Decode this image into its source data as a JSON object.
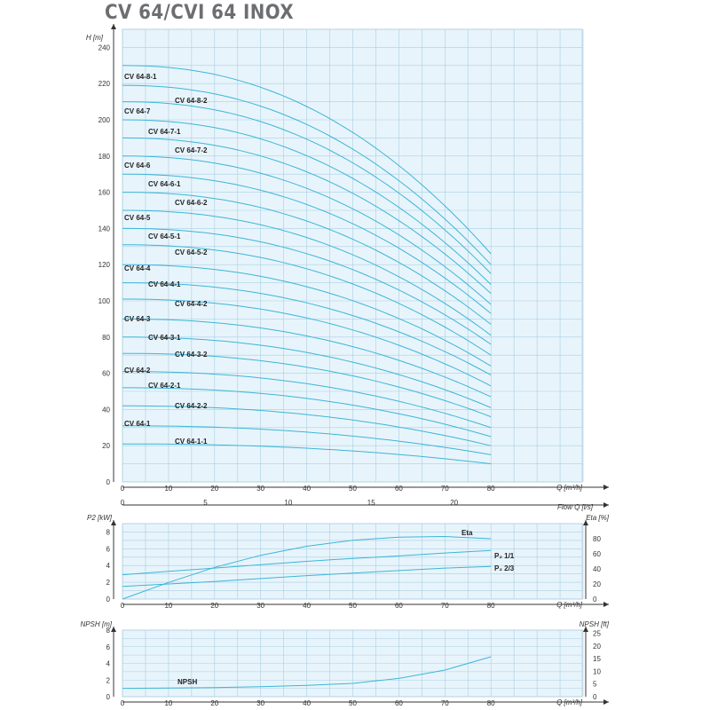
{
  "title": "CV 64/CVI 64 INOX",
  "colors": {
    "panel": "#e8f4fb",
    "grid": "#a9cfe3",
    "curve": "#3bb6d8",
    "axis": "#333333",
    "title": "#6d6e71"
  },
  "chart_data": [
    {
      "id": "head",
      "type": "line",
      "ylabel": "H [m]",
      "xlabel": "Q [m³/h]",
      "xlim": [
        0,
        100
      ],
      "ylim": [
        0,
        240
      ],
      "xticks": [
        0,
        10,
        20,
        30,
        40,
        50,
        60,
        70,
        80
      ],
      "yticks": [
        0,
        20,
        40,
        60,
        80,
        100,
        120,
        140,
        160,
        180,
        200,
        220,
        240
      ],
      "secondary_x": {
        "label": "Flow Q [l/s]",
        "ticks": [
          0,
          5,
          10,
          15,
          20
        ]
      },
      "grid": true,
      "series": [
        {
          "name": "CV 64-8-1",
          "shutoff": 230,
          "end": 126
        },
        {
          "name": "CV 64-8-2",
          "shutoff": 219,
          "end": 120
        },
        {
          "name": "CV 64-7",
          "shutoff": 210,
          "end": 115
        },
        {
          "name": "CV 64-7-1",
          "shutoff": 200,
          "end": 109
        },
        {
          "name": "CV 64-7-2",
          "shutoff": 190,
          "end": 104
        },
        {
          "name": "CV 64-6",
          "shutoff": 180,
          "end": 98
        },
        {
          "name": "CV 64-6-1",
          "shutoff": 170,
          "end": 93
        },
        {
          "name": "CV 64-6-2",
          "shutoff": 160,
          "end": 87
        },
        {
          "name": "CV 64-5",
          "shutoff": 150,
          "end": 81
        },
        {
          "name": "CV 64-5-1",
          "shutoff": 140,
          "end": 76
        },
        {
          "name": "CV 64-5-2",
          "shutoff": 131,
          "end": 70
        },
        {
          "name": "CV 64-4",
          "shutoff": 120,
          "end": 64
        },
        {
          "name": "CV 64-4-1",
          "shutoff": 110,
          "end": 59
        },
        {
          "name": "CV 64-4-2",
          "shutoff": 101,
          "end": 53
        },
        {
          "name": "CV 64-3",
          "shutoff": 90,
          "end": 47
        },
        {
          "name": "CV 64-3-1",
          "shutoff": 80,
          "end": 41
        },
        {
          "name": "CV 64-3-2",
          "shutoff": 71,
          "end": 36
        },
        {
          "name": "CV 64-2",
          "shutoff": 61,
          "end": 30
        },
        {
          "name": "CV 64-2-1",
          "shutoff": 52,
          "end": 25
        },
        {
          "name": "CV 64-2-2",
          "shutoff": 42,
          "end": 20
        },
        {
          "name": "CV 64-1",
          "shutoff": 31,
          "end": 15
        },
        {
          "name": "CV 64-1-1",
          "shutoff": 21,
          "end": 10
        }
      ]
    },
    {
      "id": "power",
      "type": "line",
      "ylabel": "P2 [kW]",
      "ylabel_right": "Eta [%]",
      "xlabel": "Q [m³/h]",
      "xlim": [
        0,
        100
      ],
      "ylim": [
        0,
        9
      ],
      "ylim_right": [
        0,
        100
      ],
      "xticks": [
        0,
        10,
        20,
        30,
        40,
        50,
        60,
        70,
        80
      ],
      "yticks": [
        0,
        2,
        4,
        6,
        8
      ],
      "yticks_right": [
        0,
        20,
        40,
        60,
        80
      ],
      "grid": true,
      "series": [
        {
          "name": "Eta",
          "axis": "right",
          "x": [
            0,
            10,
            20,
            30,
            40,
            50,
            60,
            70,
            80
          ],
          "y": [
            0,
            22,
            42,
            58,
            70,
            78,
            82,
            83,
            80
          ]
        },
        {
          "name": "P₂ 1/1",
          "axis": "left",
          "x": [
            0,
            10,
            20,
            30,
            40,
            50,
            60,
            70,
            80
          ],
          "y": [
            2.9,
            3.3,
            3.7,
            4.1,
            4.5,
            4.85,
            5.15,
            5.5,
            5.8
          ]
        },
        {
          "name": "P₂ 2/3",
          "axis": "left",
          "x": [
            0,
            10,
            20,
            30,
            40,
            50,
            60,
            70,
            80
          ],
          "y": [
            1.5,
            1.8,
            2.1,
            2.45,
            2.8,
            3.1,
            3.4,
            3.7,
            3.9
          ]
        }
      ]
    },
    {
      "id": "npsh",
      "type": "line",
      "ylabel": "NPSH [m]",
      "ylabel_right": "NPSH [ft]",
      "xlabel": "Q [m³/h]",
      "xlim": [
        0,
        100
      ],
      "ylim": [
        0,
        8
      ],
      "ylim_right": [
        0,
        26.25
      ],
      "xticks": [
        0,
        10,
        20,
        30,
        40,
        50,
        60,
        70,
        80
      ],
      "yticks": [
        0,
        2,
        4,
        6,
        8
      ],
      "yticks_right": [
        0,
        5,
        10,
        15,
        20,
        25
      ],
      "grid": true,
      "series": [
        {
          "name": "NPSH",
          "x": [
            0,
            10,
            20,
            30,
            40,
            50,
            60,
            70,
            80
          ],
          "y": [
            1.0,
            1.05,
            1.1,
            1.2,
            1.35,
            1.6,
            2.2,
            3.2,
            4.8
          ]
        }
      ]
    }
  ]
}
